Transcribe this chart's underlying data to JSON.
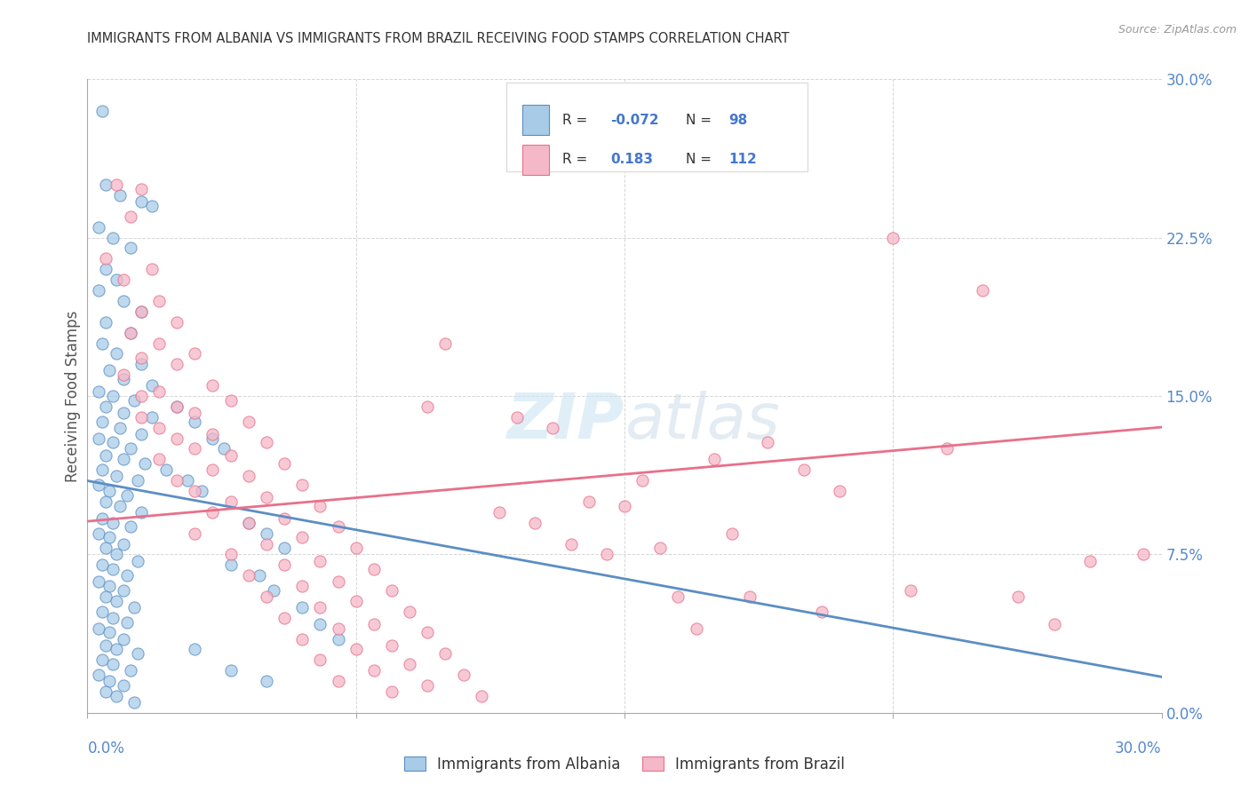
{
  "title": "IMMIGRANTS FROM ALBANIA VS IMMIGRANTS FROM BRAZIL RECEIVING FOOD STAMPS CORRELATION CHART",
  "source": "Source: ZipAtlas.com",
  "ylabel": "Receiving Food Stamps",
  "ytick_values": [
    0.0,
    7.5,
    15.0,
    22.5,
    30.0
  ],
  "xlim": [
    0.0,
    30.0
  ],
  "ylim": [
    0.0,
    30.0
  ],
  "legend_label1": "Immigrants from Albania",
  "legend_label2": "Immigrants from Brazil",
  "color_albania": "#a8cce8",
  "color_brazil": "#f5b8c8",
  "color_line_albania": "#5b8ec4",
  "color_line_brazil": "#e8708a",
  "watermark_zip": "ZIP",
  "watermark_atlas": "atlas",
  "albania_R": -0.072,
  "albania_N": 98,
  "brazil_R": 0.183,
  "brazil_N": 112,
  "albania_scatter": [
    [
      0.4,
      28.5
    ],
    [
      0.5,
      25.0
    ],
    [
      0.9,
      24.5
    ],
    [
      1.5,
      24.2
    ],
    [
      1.8,
      24.0
    ],
    [
      0.3,
      23.0
    ],
    [
      0.7,
      22.5
    ],
    [
      1.2,
      22.0
    ],
    [
      0.5,
      21.0
    ],
    [
      0.8,
      20.5
    ],
    [
      0.3,
      20.0
    ],
    [
      1.0,
      19.5
    ],
    [
      1.5,
      19.0
    ],
    [
      0.5,
      18.5
    ],
    [
      1.2,
      18.0
    ],
    [
      0.4,
      17.5
    ],
    [
      0.8,
      17.0
    ],
    [
      1.5,
      16.5
    ],
    [
      0.6,
      16.2
    ],
    [
      1.0,
      15.8
    ],
    [
      1.8,
      15.5
    ],
    [
      0.3,
      15.2
    ],
    [
      0.7,
      15.0
    ],
    [
      1.3,
      14.8
    ],
    [
      0.5,
      14.5
    ],
    [
      1.0,
      14.2
    ],
    [
      1.8,
      14.0
    ],
    [
      0.4,
      13.8
    ],
    [
      0.9,
      13.5
    ],
    [
      1.5,
      13.2
    ],
    [
      0.3,
      13.0
    ],
    [
      0.7,
      12.8
    ],
    [
      1.2,
      12.5
    ],
    [
      0.5,
      12.2
    ],
    [
      1.0,
      12.0
    ],
    [
      1.6,
      11.8
    ],
    [
      0.4,
      11.5
    ],
    [
      0.8,
      11.2
    ],
    [
      1.4,
      11.0
    ],
    [
      0.3,
      10.8
    ],
    [
      0.6,
      10.5
    ],
    [
      1.1,
      10.3
    ],
    [
      0.5,
      10.0
    ],
    [
      0.9,
      9.8
    ],
    [
      1.5,
      9.5
    ],
    [
      0.4,
      9.2
    ],
    [
      0.7,
      9.0
    ],
    [
      1.2,
      8.8
    ],
    [
      0.3,
      8.5
    ],
    [
      0.6,
      8.3
    ],
    [
      1.0,
      8.0
    ],
    [
      0.5,
      7.8
    ],
    [
      0.8,
      7.5
    ],
    [
      1.4,
      7.2
    ],
    [
      0.4,
      7.0
    ],
    [
      0.7,
      6.8
    ],
    [
      1.1,
      6.5
    ],
    [
      0.3,
      6.2
    ],
    [
      0.6,
      6.0
    ],
    [
      1.0,
      5.8
    ],
    [
      0.5,
      5.5
    ],
    [
      0.8,
      5.3
    ],
    [
      1.3,
      5.0
    ],
    [
      0.4,
      4.8
    ],
    [
      0.7,
      4.5
    ],
    [
      1.1,
      4.3
    ],
    [
      0.3,
      4.0
    ],
    [
      0.6,
      3.8
    ],
    [
      1.0,
      3.5
    ],
    [
      0.5,
      3.2
    ],
    [
      0.8,
      3.0
    ],
    [
      1.4,
      2.8
    ],
    [
      0.4,
      2.5
    ],
    [
      0.7,
      2.3
    ],
    [
      1.2,
      2.0
    ],
    [
      0.3,
      1.8
    ],
    [
      0.6,
      1.5
    ],
    [
      1.0,
      1.3
    ],
    [
      0.5,
      1.0
    ],
    [
      0.8,
      0.8
    ],
    [
      1.3,
      0.5
    ],
    [
      2.5,
      14.5
    ],
    [
      3.0,
      13.8
    ],
    [
      3.5,
      13.0
    ],
    [
      3.8,
      12.5
    ],
    [
      2.2,
      11.5
    ],
    [
      2.8,
      11.0
    ],
    [
      3.2,
      10.5
    ],
    [
      4.5,
      9.0
    ],
    [
      5.0,
      8.5
    ],
    [
      5.5,
      7.8
    ],
    [
      4.0,
      7.0
    ],
    [
      4.8,
      6.5
    ],
    [
      5.2,
      5.8
    ],
    [
      6.0,
      5.0
    ],
    [
      6.5,
      4.2
    ],
    [
      7.0,
      3.5
    ],
    [
      3.0,
      3.0
    ],
    [
      4.0,
      2.0
    ],
    [
      5.0,
      1.5
    ]
  ],
  "brazil_scatter": [
    [
      0.8,
      25.0
    ],
    [
      1.5,
      24.8
    ],
    [
      1.2,
      23.5
    ],
    [
      0.5,
      21.5
    ],
    [
      1.8,
      21.0
    ],
    [
      1.0,
      20.5
    ],
    [
      2.0,
      19.5
    ],
    [
      1.5,
      19.0
    ],
    [
      2.5,
      18.5
    ],
    [
      1.2,
      18.0
    ],
    [
      2.0,
      17.5
    ],
    [
      3.0,
      17.0
    ],
    [
      1.5,
      16.8
    ],
    [
      2.5,
      16.5
    ],
    [
      1.0,
      16.0
    ],
    [
      3.5,
      15.5
    ],
    [
      2.0,
      15.2
    ],
    [
      1.5,
      15.0
    ],
    [
      4.0,
      14.8
    ],
    [
      2.5,
      14.5
    ],
    [
      3.0,
      14.2
    ],
    [
      1.5,
      14.0
    ],
    [
      4.5,
      13.8
    ],
    [
      2.0,
      13.5
    ],
    [
      3.5,
      13.2
    ],
    [
      2.5,
      13.0
    ],
    [
      5.0,
      12.8
    ],
    [
      3.0,
      12.5
    ],
    [
      4.0,
      12.2
    ],
    [
      2.0,
      12.0
    ],
    [
      5.5,
      11.8
    ],
    [
      3.5,
      11.5
    ],
    [
      4.5,
      11.2
    ],
    [
      2.5,
      11.0
    ],
    [
      6.0,
      10.8
    ],
    [
      3.0,
      10.5
    ],
    [
      5.0,
      10.2
    ],
    [
      4.0,
      10.0
    ],
    [
      6.5,
      9.8
    ],
    [
      3.5,
      9.5
    ],
    [
      5.5,
      9.2
    ],
    [
      4.5,
      9.0
    ],
    [
      7.0,
      8.8
    ],
    [
      3.0,
      8.5
    ],
    [
      6.0,
      8.3
    ],
    [
      5.0,
      8.0
    ],
    [
      7.5,
      7.8
    ],
    [
      4.0,
      7.5
    ],
    [
      6.5,
      7.2
    ],
    [
      5.5,
      7.0
    ],
    [
      8.0,
      6.8
    ],
    [
      4.5,
      6.5
    ],
    [
      7.0,
      6.2
    ],
    [
      6.0,
      6.0
    ],
    [
      8.5,
      5.8
    ],
    [
      5.0,
      5.5
    ],
    [
      7.5,
      5.3
    ],
    [
      6.5,
      5.0
    ],
    [
      9.0,
      4.8
    ],
    [
      5.5,
      4.5
    ],
    [
      8.0,
      4.2
    ],
    [
      7.0,
      4.0
    ],
    [
      9.5,
      3.8
    ],
    [
      6.0,
      3.5
    ],
    [
      8.5,
      3.2
    ],
    [
      7.5,
      3.0
    ],
    [
      10.0,
      2.8
    ],
    [
      6.5,
      2.5
    ],
    [
      9.0,
      2.3
    ],
    [
      8.0,
      2.0
    ],
    [
      10.5,
      1.8
    ],
    [
      7.0,
      1.5
    ],
    [
      9.5,
      1.3
    ],
    [
      8.5,
      1.0
    ],
    [
      11.0,
      0.8
    ],
    [
      11.5,
      9.5
    ],
    [
      12.0,
      14.0
    ],
    [
      12.5,
      9.0
    ],
    [
      13.0,
      13.5
    ],
    [
      13.5,
      8.0
    ],
    [
      14.0,
      10.0
    ],
    [
      14.5,
      7.5
    ],
    [
      15.0,
      9.8
    ],
    [
      15.5,
      11.0
    ],
    [
      16.0,
      7.8
    ],
    [
      16.5,
      5.5
    ],
    [
      17.0,
      4.0
    ],
    [
      17.5,
      12.0
    ],
    [
      18.0,
      8.5
    ],
    [
      18.5,
      5.5
    ],
    [
      19.0,
      12.8
    ],
    [
      20.0,
      11.5
    ],
    [
      20.5,
      4.8
    ],
    [
      21.0,
      10.5
    ],
    [
      22.5,
      22.5
    ],
    [
      23.0,
      5.8
    ],
    [
      24.0,
      12.5
    ],
    [
      25.0,
      20.0
    ],
    [
      26.0,
      5.5
    ],
    [
      27.0,
      4.2
    ],
    [
      28.0,
      7.2
    ],
    [
      29.5,
      7.5
    ],
    [
      10.0,
      17.5
    ],
    [
      9.5,
      14.5
    ]
  ]
}
